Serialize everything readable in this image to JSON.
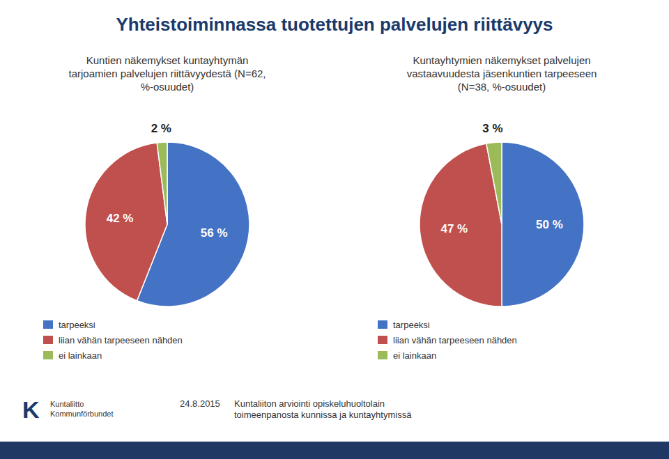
{
  "chart_data": [
    {
      "type": "pie",
      "title": "Yhteistoiminnassa tuotettujen palvelujen riittävyys",
      "subtitle": "Kuntien näkemykset kuntayhtymän\ntarjoamien palvelujen riittävyydestä (N=62,\n%-osuudet)",
      "categories": [
        "tarpeeksi",
        "liian vähän tarpeeseen nähden",
        "ei lainkaan"
      ],
      "values": [
        56,
        42,
        2
      ],
      "value_labels": [
        "56 %",
        "42 %",
        "2 %"
      ],
      "colors": [
        "#4472c4",
        "#c0504d",
        "#9bbb59"
      ],
      "data_labels": true,
      "legend": "lower left",
      "annotations": [
        "K",
        "Kuntaliitto\nKommunförbundet",
        "24.8.2015",
        "Kuntaliiton arviointi opiskeluhuoltolain\ntoimeenpanosta kunnissa ja kuntayhtymissä"
      ]
    },
    {
      "type": "pie",
      "subtitle": "Kuntayhtymien näkemykset palvelujen\nvastaavuudesta jäsenkuntien tarpeeseen\n(N=38, %-osuudet)",
      "categories": [
        "tarpeeksi",
        "liian vähän tarpeeseen nähden",
        "ei lainkaan"
      ],
      "values": [
        50,
        47,
        3
      ],
      "value_labels": [
        "50 %",
        "47 %",
        "3 %"
      ],
      "colors": [
        "#4472c4",
        "#c0504d",
        "#9bbb59"
      ],
      "data_labels": true,
      "legend": "lower left"
    }
  ]
}
